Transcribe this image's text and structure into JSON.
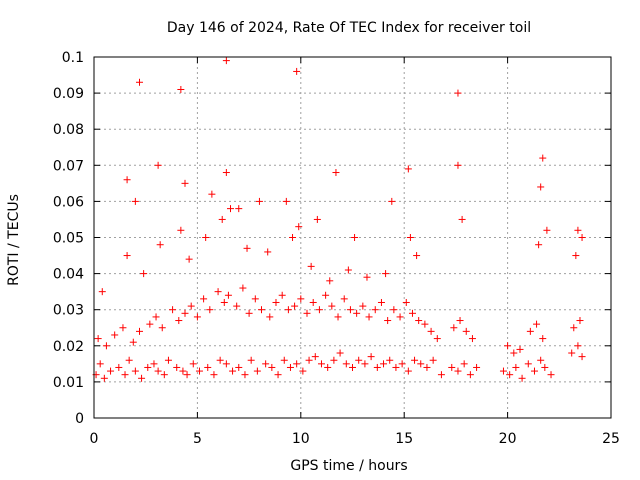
{
  "chart_data": {
    "type": "scatter",
    "title": "Day 146 of 2024, Rate Of TEC Index for receiver toil",
    "xlabel": "GPS time / hours",
    "ylabel": "ROTI / TECUs",
    "xlim": [
      0,
      25
    ],
    "ylim": [
      0,
      0.1
    ],
    "xticks": [
      0,
      5,
      10,
      15,
      20,
      25
    ],
    "xtick_labels": [
      "0",
      "5",
      "10",
      "15",
      "20",
      "25"
    ],
    "yticks": [
      0,
      0.01,
      0.02,
      0.03,
      0.04,
      0.05,
      0.06,
      0.07,
      0.08,
      0.09,
      0.1
    ],
    "ytick_labels": [
      "0",
      "0.01",
      "0.02",
      "0.03",
      "0.04",
      "0.05",
      "0.06",
      "0.07",
      "0.08",
      "0.09",
      "0.1"
    ],
    "grid": true,
    "marker": "+",
    "marker_color": "#ff0000",
    "series": [
      {
        "name": "ROTI",
        "x": [
          0.1,
          0.3,
          0.5,
          0.8,
          1.2,
          1.5,
          1.7,
          2.0,
          2.3,
          2.6,
          2.9,
          3.1,
          3.4,
          3.6,
          4.0,
          4.3,
          4.5,
          4.8,
          5.1,
          5.5,
          5.8,
          6.1,
          6.4,
          6.7,
          7.0,
          7.3,
          7.6,
          7.9,
          8.3,
          8.6,
          8.9,
          9.2,
          9.5,
          9.8,
          10.1,
          10.4,
          10.7,
          11.0,
          11.3,
          11.6,
          11.9,
          12.2,
          12.5,
          12.8,
          13.1,
          13.4,
          13.7,
          14.0,
          14.3,
          14.6,
          14.9,
          15.2,
          15.5,
          15.8,
          16.1,
          16.4,
          16.8,
          17.3,
          17.6,
          17.9,
          18.2,
          18.5,
          19.8,
          20.1,
          20.4,
          20.7,
          21.0,
          21.3,
          21.6,
          21.8,
          22.1,
          23.1,
          23.4,
          23.6,
          0.2,
          0.6,
          1.0,
          1.4,
          1.9,
          2.2,
          2.7,
          3.0,
          3.3,
          3.8,
          4.1,
          4.4,
          4.7,
          5.0,
          5.3,
          5.6,
          6.0,
          6.3,
          6.5,
          6.9,
          7.2,
          7.5,
          7.8,
          8.1,
          8.5,
          8.8,
          9.1,
          9.4,
          9.7,
          10.0,
          10.3,
          10.6,
          10.9,
          11.2,
          11.5,
          11.8,
          12.1,
          12.4,
          12.7,
          13.0,
          13.3,
          13.6,
          13.9,
          14.2,
          14.5,
          14.8,
          15.1,
          15.4,
          15.7,
          16.0,
          16.3,
          16.6,
          17.4,
          17.7,
          18.0,
          18.3,
          20.0,
          20.3,
          20.6,
          21.1,
          21.4,
          21.7,
          23.2,
          23.5,
          0.4,
          1.6,
          2.4,
          3.2,
          4.2,
          4.6,
          5.4,
          6.2,
          6.6,
          7.4,
          8.4,
          9.6,
          9.9,
          10.5,
          11.4,
          12.3,
          13.2,
          14.1,
          15.3,
          15.6,
          17.8,
          21.5,
          21.9,
          23.3,
          23.6,
          1.6,
          2.0,
          3.1,
          4.4,
          5.7,
          6.4,
          7.0,
          8.0,
          9.3,
          10.8,
          11.7,
          12.6,
          14.4,
          15.2,
          17.6,
          21.6,
          23.4,
          2.2,
          4.2,
          6.4,
          9.8,
          17.6,
          21.7
        ],
        "y": [
          0.012,
          0.015,
          0.011,
          0.013,
          0.014,
          0.012,
          0.016,
          0.013,
          0.011,
          0.014,
          0.015,
          0.013,
          0.012,
          0.016,
          0.014,
          0.013,
          0.012,
          0.015,
          0.013,
          0.014,
          0.012,
          0.016,
          0.015,
          0.013,
          0.014,
          0.012,
          0.016,
          0.013,
          0.015,
          0.014,
          0.012,
          0.016,
          0.014,
          0.015,
          0.013,
          0.016,
          0.017,
          0.015,
          0.014,
          0.016,
          0.018,
          0.015,
          0.014,
          0.016,
          0.015,
          0.017,
          0.014,
          0.015,
          0.016,
          0.014,
          0.015,
          0.013,
          0.016,
          0.015,
          0.014,
          0.016,
          0.012,
          0.014,
          0.013,
          0.015,
          0.012,
          0.014,
          0.013,
          0.012,
          0.014,
          0.011,
          0.015,
          0.013,
          0.016,
          0.014,
          0.012,
          0.018,
          0.02,
          0.017,
          0.022,
          0.02,
          0.023,
          0.025,
          0.021,
          0.024,
          0.026,
          0.028,
          0.025,
          0.03,
          0.027,
          0.029,
          0.031,
          0.028,
          0.033,
          0.03,
          0.035,
          0.032,
          0.034,
          0.031,
          0.036,
          0.029,
          0.033,
          0.03,
          0.028,
          0.032,
          0.034,
          0.03,
          0.031,
          0.033,
          0.029,
          0.032,
          0.03,
          0.034,
          0.031,
          0.028,
          0.033,
          0.03,
          0.029,
          0.031,
          0.028,
          0.03,
          0.032,
          0.027,
          0.03,
          0.028,
          0.032,
          0.029,
          0.027,
          0.026,
          0.024,
          0.022,
          0.025,
          0.027,
          0.024,
          0.022,
          0.02,
          0.018,
          0.019,
          0.024,
          0.026,
          0.022,
          0.025,
          0.027,
          0.035,
          0.045,
          0.04,
          0.048,
          0.052,
          0.044,
          0.05,
          0.055,
          0.058,
          0.047,
          0.046,
          0.05,
          0.053,
          0.042,
          0.038,
          0.041,
          0.039,
          0.04,
          0.05,
          0.045,
          0.055,
          0.048,
          0.052,
          0.045,
          0.05,
          0.066,
          0.06,
          0.07,
          0.065,
          0.062,
          0.068,
          0.058,
          0.06,
          0.06,
          0.055,
          0.068,
          0.05,
          0.06,
          0.069,
          0.07,
          0.064,
          0.052,
          0.093,
          0.091,
          0.099,
          0.096,
          0.09,
          0.072
        ]
      }
    ]
  }
}
